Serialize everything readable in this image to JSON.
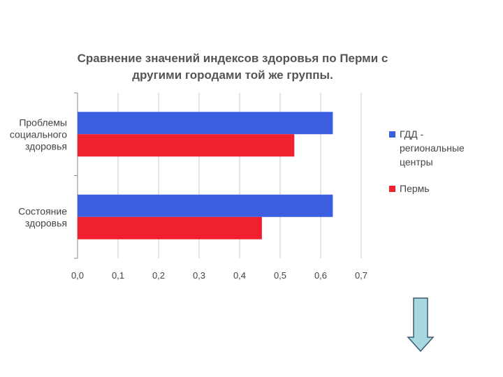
{
  "chart_data": {
    "type": "bar",
    "orientation": "horizontal",
    "title_lines": [
      "Сравнение значений индексов здоровья по Перми с",
      "другими городами той же группы."
    ],
    "categories": [
      {
        "lines": [
          "Проблемы",
          "социального",
          "здоровья"
        ]
      },
      {
        "lines": [
          "Состояние",
          "здоровья"
        ]
      }
    ],
    "series": [
      {
        "name_lines": [
          "ГДД -",
          "региональные",
          "центры"
        ],
        "color": "#3a5fe0",
        "values": [
          0.63,
          0.63
        ]
      },
      {
        "name_lines": [
          "Пермь"
        ],
        "color": "#f0202e",
        "values": [
          0.535,
          0.455
        ]
      }
    ],
    "xlim": [
      0,
      0.7
    ],
    "xticks": [
      0.0,
      0.1,
      0.2,
      0.3,
      0.4,
      0.5,
      0.6,
      0.7
    ],
    "xtick_labels": [
      "0,0",
      "0,1",
      "0,2",
      "0,3",
      "0,4",
      "0,5",
      "0,6",
      "0,7"
    ],
    "grid": true,
    "legend_position": "right"
  },
  "arrow": {
    "icon": "down-arrow-icon",
    "fill_color": "#a8d8e0",
    "stroke_color": "#3a5a70"
  }
}
